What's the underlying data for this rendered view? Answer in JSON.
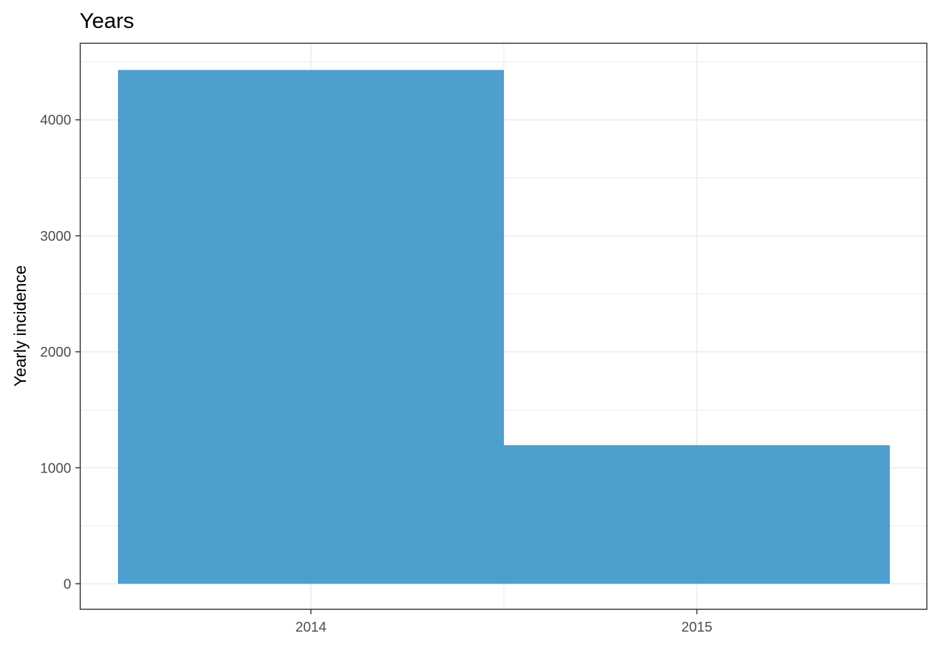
{
  "chart_data": {
    "type": "bar",
    "title": "Years",
    "xlabel": "",
    "ylabel": "Yearly incidence",
    "categories": [
      "2014",
      "2015"
    ],
    "values": [
      4430,
      1195
    ],
    "ylim": [
      -220,
      4660
    ],
    "yticks": [
      0,
      1000,
      2000,
      3000,
      4000
    ],
    "grid": true,
    "legend": "none",
    "colors": {
      "bar": "#2b8cc4",
      "grid": "#ebebeb",
      "panel_border": "#333333",
      "tick_text": "#4d4d4d"
    }
  }
}
